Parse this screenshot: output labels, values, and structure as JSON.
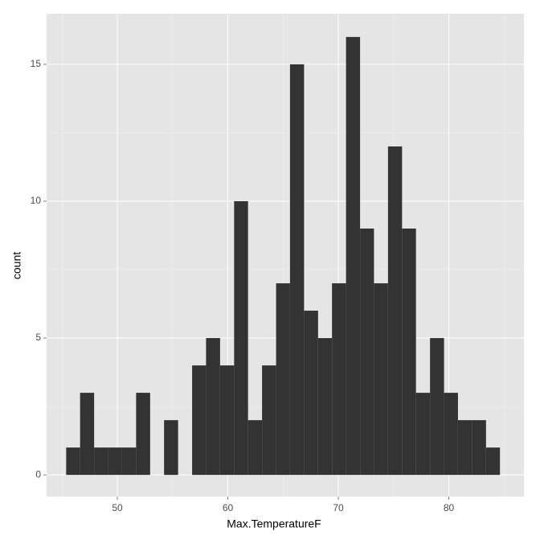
{
  "chart_data": {
    "type": "histogram",
    "x_label": "Max.TemperatureF",
    "y_label": "count",
    "bins": [
      45.37,
      46.63,
      47.9,
      49.17,
      50.43,
      51.7,
      52.97,
      54.23,
      55.5,
      56.77,
      58.03,
      59.3,
      60.57,
      61.83,
      63.1,
      64.37,
      65.63,
      66.9,
      68.17,
      69.43,
      70.7,
      71.97,
      73.23,
      74.5,
      75.77,
      77.03,
      78.3,
      79.57,
      80.83,
      82.1,
      83.37,
      84.63
    ],
    "values": [
      1,
      3,
      1,
      1,
      1,
      3,
      0,
      2,
      0,
      4,
      5,
      4,
      10,
      2,
      4,
      7,
      15,
      6,
      5,
      7,
      16,
      9,
      7,
      12,
      9,
      3,
      5,
      3,
      2,
      2,
      1
    ],
    "color": "#333333",
    "xlim": [
      43.6,
      86.8
    ],
    "xticks": [
      50,
      60,
      70,
      80
    ],
    "ylim": [
      -0.79,
      16.85
    ],
    "yticks": [
      0,
      5,
      10,
      15
    ],
    "grid": true
  }
}
